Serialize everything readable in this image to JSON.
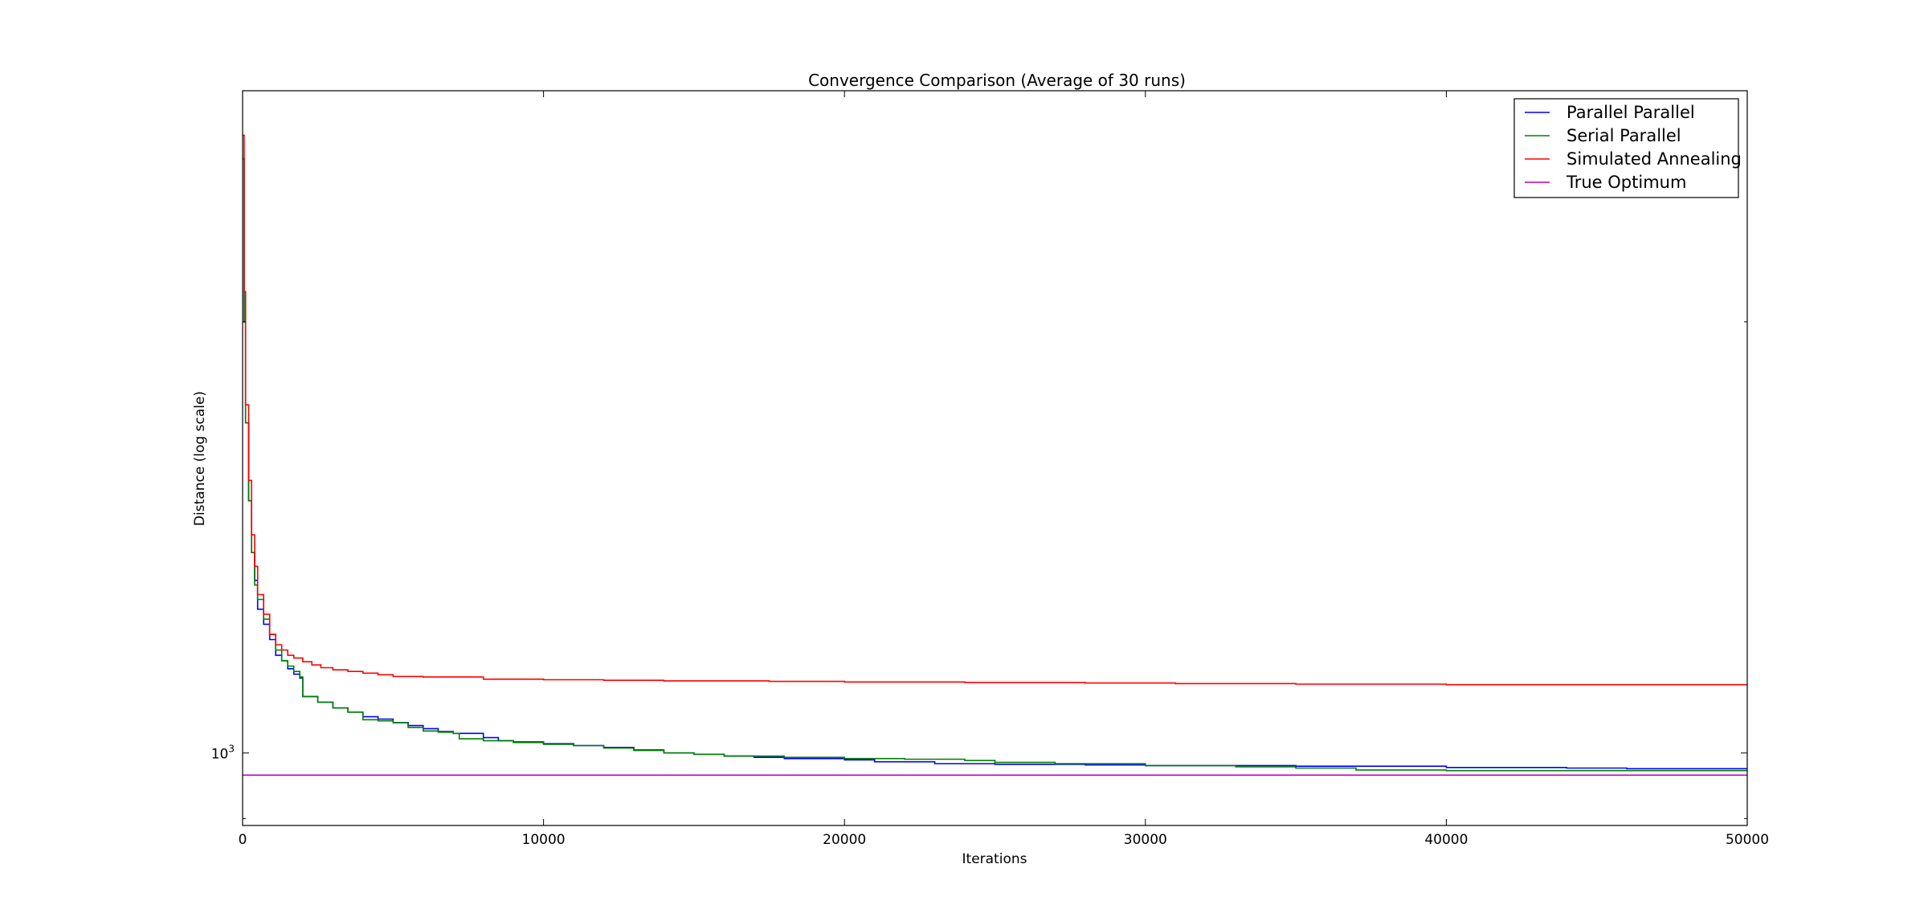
{
  "chart_data": {
    "type": "line",
    "title": "Convergence Comparison (Average of 30 runs)",
    "xlabel": "Iterations",
    "ylabel": "Distance (log scale)",
    "xlim": [
      0,
      50000
    ],
    "ylim": [
      890,
      2900
    ],
    "yscale": "log",
    "x_ticks": [
      0,
      10000,
      20000,
      30000,
      40000,
      50000
    ],
    "y_major_ticks": [
      1000
    ],
    "y_tick_labels": [
      {
        "base": "10",
        "exp": "3"
      }
    ],
    "grid": false,
    "legend": "top-right",
    "series": [
      {
        "name": "Parallel Parallel",
        "color": "#0000ff",
        "step": true,
        "x": [
          0,
          50,
          100,
          200,
          300,
          400,
          500,
          700,
          900,
          1100,
          1300,
          1500,
          1700,
          1900,
          2000,
          2500,
          3000,
          3500,
          4000,
          4500,
          5000,
          5500,
          6000,
          6500,
          7000,
          8000,
          8500,
          9000,
          10000,
          11000,
          12000,
          13000,
          14000,
          15000,
          16000,
          17000,
          18000,
          20000,
          21000,
          23000,
          25000,
          28000,
          30000,
          35000,
          40000,
          44000,
          46000,
          50000
        ],
        "y": [
          2600,
          2000,
          1700,
          1500,
          1380,
          1320,
          1260,
          1230,
          1200,
          1170,
          1160,
          1145,
          1135,
          1128,
          1095,
          1085,
          1075,
          1068,
          1060,
          1056,
          1050,
          1045,
          1040,
          1035,
          1032,
          1025,
          1020,
          1018,
          1015,
          1012,
          1009,
          1005,
          1000,
          998,
          995,
          993,
          991,
          989,
          986,
          983,
          982,
          981,
          980,
          979,
          977,
          976,
          975,
          975
        ]
      },
      {
        "name": "Serial Parallel",
        "color": "#008000",
        "step": true,
        "x": [
          0,
          50,
          100,
          200,
          300,
          400,
          500,
          700,
          900,
          1100,
          1300,
          1500,
          1700,
          1900,
          2000,
          2500,
          3000,
          3500,
          4000,
          4500,
          5000,
          5500,
          6000,
          6500,
          7000,
          7200,
          8000,
          9000,
          10000,
          11000,
          12000,
          13000,
          14000,
          15000,
          16000,
          18000,
          20000,
          22000,
          24000,
          25000,
          27000,
          30000,
          33000,
          35000,
          37000,
          40000,
          50000
        ],
        "y": [
          2600,
          2000,
          1700,
          1500,
          1380,
          1310,
          1280,
          1240,
          1210,
          1180,
          1160,
          1150,
          1140,
          1130,
          1095,
          1085,
          1075,
          1068,
          1055,
          1053,
          1050,
          1042,
          1036,
          1034,
          1032,
          1023,
          1020,
          1017,
          1014,
          1012,
          1008,
          1004,
          1000,
          998,
          995,
          993,
          991,
          990,
          988,
          985,
          983,
          980,
          978,
          976,
          973,
          972,
          971
        ]
      },
      {
        "name": "Simulated Annealing",
        "color": "#ff0000",
        "step": true,
        "x": [
          0,
          50,
          100,
          200,
          300,
          400,
          500,
          700,
          900,
          1100,
          1300,
          1500,
          1700,
          2000,
          2300,
          2600,
          3000,
          3500,
          4000,
          4500,
          5000,
          6000,
          8000,
          10000,
          12000,
          14000,
          17500,
          20000,
          24000,
          28000,
          31000,
          35000,
          40000,
          45000,
          50000
        ],
        "y": [
          2700,
          2100,
          1750,
          1550,
          1420,
          1350,
          1290,
          1250,
          1210,
          1190,
          1180,
          1170,
          1165,
          1158,
          1152,
          1147,
          1143,
          1140,
          1137,
          1134,
          1131,
          1130,
          1126,
          1125,
          1124,
          1123,
          1122,
          1121,
          1120,
          1119,
          1118,
          1117,
          1116,
          1116,
          1116
        ]
      },
      {
        "name": "True Optimum",
        "color": "#bf00bf",
        "step": false,
        "x": [
          0,
          50000
        ],
        "y": [
          965,
          965
        ]
      }
    ]
  }
}
